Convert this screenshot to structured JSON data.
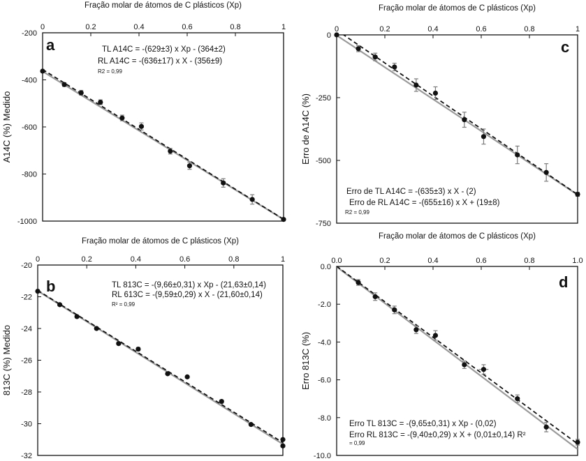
{
  "figure": {
    "colors": {
      "axis": "#111111",
      "tl_line": "#9a9a9a",
      "rl_line": "#111111",
      "point": "#111111",
      "errorbar": "#7a7a7a"
    }
  },
  "chart_data": [
    {
      "id": "a",
      "type": "scatter",
      "panel_label": "a",
      "xlabel": "Fração molar de átomos de C plásticos (Xp)",
      "ylabel": "A14C (%) Medido",
      "xlim": [
        0,
        1
      ],
      "ylim": [
        -1000,
        -200
      ],
      "xticks": [
        0,
        0.2,
        0.4,
        0.6,
        0.8,
        1
      ],
      "xtick_labels": [
        "0",
        "0.2",
        "0.4",
        "0.6",
        "0.8",
        "1"
      ],
      "yticks": [
        -200,
        -400,
        -600,
        -800,
        -1000
      ],
      "ytick_labels": [
        "-200",
        "-400",
        "-600",
        "-800",
        "-1000"
      ],
      "x_axis_position": "top",
      "points": [
        {
          "x": 0.0,
          "y": -363,
          "err": 5
        },
        {
          "x": 0.09,
          "y": -420,
          "err": 8
        },
        {
          "x": 0.16,
          "y": -455,
          "err": 10
        },
        {
          "x": 0.24,
          "y": -495,
          "err": 10
        },
        {
          "x": 0.33,
          "y": -562,
          "err": 12
        },
        {
          "x": 0.41,
          "y": -598,
          "err": 15
        },
        {
          "x": 0.53,
          "y": -703,
          "err": 12
        },
        {
          "x": 0.61,
          "y": -765,
          "err": 15
        },
        {
          "x": 0.75,
          "y": -838,
          "err": 18
        },
        {
          "x": 0.87,
          "y": -908,
          "err": 20
        },
        {
          "x": 1.0,
          "y": -993,
          "err": 5
        }
      ],
      "lines": [
        {
          "name": "TL",
          "slope": -629,
          "intercept": -364,
          "style": "solid",
          "color_key": "tl_line"
        },
        {
          "name": "RL",
          "slope": -636,
          "intercept": -356,
          "style": "dashed",
          "color_key": "rl_line"
        }
      ],
      "equations": [
        "TL A14C = -(629±3) x Xp - (364±2)",
        "RL A14C = -(636±17) x X - (356±9)",
        "R2 = 0,99"
      ]
    },
    {
      "id": "b",
      "type": "scatter",
      "panel_label": "b",
      "xlabel": "Fração molar de átomos de C plásticos (Xp)",
      "ylabel": "813C (%) Medido",
      "xlim": [
        0,
        1
      ],
      "ylim": [
        -32,
        -20
      ],
      "xticks": [
        0,
        0.2,
        0.4,
        0.6,
        0.8,
        1
      ],
      "xtick_labels": [
        "0",
        "0.2",
        "0.4",
        "0.6",
        "0.8",
        "1"
      ],
      "yticks": [
        -20,
        -22,
        -24,
        -26,
        -28,
        -30,
        -32
      ],
      "ytick_labels": [
        "-20",
        "-22",
        "-24",
        "-26",
        "-28",
        "-30",
        "-32"
      ],
      "x_axis_position": "top",
      "points": [
        {
          "x": 0.0,
          "y": -21.65,
          "err": 0.05
        },
        {
          "x": 0.09,
          "y": -22.5,
          "err": 0.05
        },
        {
          "x": 0.16,
          "y": -23.25,
          "err": 0.05
        },
        {
          "x": 0.24,
          "y": -24.0,
          "err": 0.08
        },
        {
          "x": 0.33,
          "y": -24.95,
          "err": 0.08
        },
        {
          "x": 0.41,
          "y": -25.3,
          "err": 0.1
        },
        {
          "x": 0.53,
          "y": -26.85,
          "err": 0.05
        },
        {
          "x": 0.61,
          "y": -27.05,
          "err": 0.05
        },
        {
          "x": 0.75,
          "y": -28.6,
          "err": 0.1
        },
        {
          "x": 0.87,
          "y": -30.05,
          "err": 0.05
        },
        {
          "x": 1.0,
          "y": -31.0,
          "err": 0.05
        },
        {
          "x": 1.0,
          "y": -31.4,
          "err": 0.05
        }
      ],
      "lines": [
        {
          "name": "TL",
          "slope": -9.66,
          "intercept": -21.63,
          "style": "solid",
          "color_key": "tl_line"
        },
        {
          "name": "RL",
          "slope": -9.59,
          "intercept": -21.6,
          "style": "dashed",
          "color_key": "rl_line"
        }
      ],
      "equations": [
        "TL 813C = -(9,66±0,31) x Xp - (21,63±0,14)",
        "RL 613C = -(9,59±0,29) x X - (21,60±0,14)",
        "R² = 0,99"
      ]
    },
    {
      "id": "c",
      "type": "scatter",
      "panel_label": "c",
      "xlabel": "Fração molar de átomos de C plásticos (Xp)",
      "ylabel": "Erro de A14C (%)",
      "xlim": [
        0,
        1
      ],
      "ylim": [
        -750,
        0
      ],
      "xticks": [
        0,
        0.2,
        0.4,
        0.6,
        0.8,
        1
      ],
      "xtick_labels": [
        "0",
        "0.2",
        "0.4",
        "0.6",
        "0.8",
        "1"
      ],
      "yticks": [
        0,
        -250,
        -500,
        -750
      ],
      "ytick_labels": [
        "0",
        "-250",
        "-500",
        "-750"
      ],
      "x_axis_position": "top",
      "points": [
        {
          "x": 0.0,
          "y": 0,
          "err": 5
        },
        {
          "x": 0.09,
          "y": -55,
          "err": 12
        },
        {
          "x": 0.16,
          "y": -88,
          "err": 15
        },
        {
          "x": 0.24,
          "y": -128,
          "err": 15
        },
        {
          "x": 0.33,
          "y": -200,
          "err": 25
        },
        {
          "x": 0.41,
          "y": -232,
          "err": 25
        },
        {
          "x": 0.53,
          "y": -338,
          "err": 30
        },
        {
          "x": 0.61,
          "y": -405,
          "err": 30
        },
        {
          "x": 0.75,
          "y": -478,
          "err": 35
        },
        {
          "x": 0.87,
          "y": -548,
          "err": 35
        },
        {
          "x": 1.0,
          "y": -635,
          "err": 8
        }
      ],
      "lines": [
        {
          "name": "TL",
          "slope": -635,
          "intercept": -2,
          "style": "solid",
          "color_key": "tl_line"
        },
        {
          "name": "RL",
          "slope": -655,
          "intercept": 19,
          "style": "dashed",
          "color_key": "rl_line"
        }
      ],
      "equations": [
        "Erro de TL A14C = -(635±3) x X - (2)",
        "Erro de RL A14C = -(655±16) x X + (19±8)",
        "R2 = 0,99"
      ]
    },
    {
      "id": "d",
      "type": "scatter",
      "panel_label": "d",
      "xlabel": "Fração molar de átomos de C plásticos (Xp)",
      "ylabel": "Erro 813C (%)",
      "xlim": [
        0,
        1
      ],
      "ylim": [
        -10,
        0
      ],
      "xticks": [
        0,
        0.2,
        0.4,
        0.6,
        0.8,
        1
      ],
      "xtick_labels": [
        "0.0",
        "0.2",
        "0.4",
        "0.6",
        "0.8",
        "1.0"
      ],
      "yticks": [
        0,
        -2,
        -4,
        -6,
        -8,
        -10
      ],
      "ytick_labels": [
        "0.0",
        "-2.0",
        "-4.0",
        "-6.0",
        "-8.0",
        "-10.0"
      ],
      "x_axis_position": "top",
      "points": [
        {
          "x": 0.09,
          "y": -0.85,
          "err": 0.15
        },
        {
          "x": 0.16,
          "y": -1.6,
          "err": 0.2
        },
        {
          "x": 0.24,
          "y": -2.3,
          "err": 0.2
        },
        {
          "x": 0.33,
          "y": -3.35,
          "err": 0.2
        },
        {
          "x": 0.41,
          "y": -3.65,
          "err": 0.25
        },
        {
          "x": 0.53,
          "y": -5.2,
          "err": 0.2
        },
        {
          "x": 0.61,
          "y": -5.45,
          "err": 0.25,
          "xerr": 0.02
        },
        {
          "x": 0.75,
          "y": -7.0,
          "err": 0.2
        },
        {
          "x": 0.87,
          "y": -8.5,
          "err": 0.25
        },
        {
          "x": 1.0,
          "y": -9.3,
          "err": 0.15
        }
      ],
      "lines": [
        {
          "name": "TL",
          "slope": -9.65,
          "intercept": -0.02,
          "style": "solid",
          "color_key": "tl_line"
        },
        {
          "name": "RL",
          "slope": -9.4,
          "intercept": 0.01,
          "style": "dashed",
          "color_key": "rl_line"
        }
      ],
      "equations": [
        "Erro TL 813C = -(9,65±0,31) x Xp - (0,02)",
        "Erro RL 813C = -(9,40±0,29) x X + (0,01±0,14) R²",
        "= 0,99"
      ]
    }
  ]
}
